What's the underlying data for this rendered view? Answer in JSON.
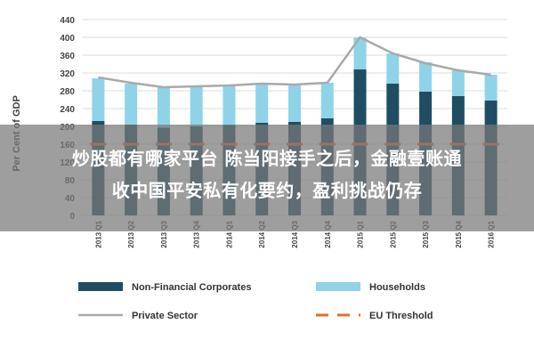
{
  "chart_data": {
    "type": "bar",
    "ylabel": "Per Cent of GDP",
    "ylim": [
      0,
      440
    ],
    "yticks": [
      0,
      40,
      80,
      120,
      160,
      200,
      240,
      280,
      320,
      360,
      400,
      440
    ],
    "categories": [
      "2013 Q1",
      "2013 Q2",
      "2013 Q3",
      "2013 Q4",
      "2014 Q1",
      "2014 Q2",
      "2014 Q3",
      "2014 Q4",
      "2015 Q1",
      "2015 Q2",
      "2015 Q3",
      "2015 Q4",
      "2016 Q1"
    ],
    "series": [
      {
        "name": "Non-Financial Corporates",
        "kind": "stacked-bar",
        "color": "#1f4e63",
        "values": [
          212,
          204,
          197,
          200,
          203,
          208,
          210,
          218,
          328,
          296,
          278,
          268,
          258
        ]
      },
      {
        "name": "Households",
        "kind": "stacked-bar",
        "color": "#8fd3e8",
        "values": [
          96,
          92,
          90,
          90,
          89,
          88,
          84,
          80,
          72,
          68,
          66,
          58,
          58
        ]
      },
      {
        "name": "Private Sector",
        "kind": "line",
        "color": "#a9a9a9",
        "values": [
          310,
          298,
          288,
          290,
          292,
          296,
          294,
          298,
          400,
          364,
          342,
          326,
          316
        ]
      },
      {
        "name": "EU Threshold",
        "kind": "dashed-line",
        "color": "#e8692a",
        "values": [
          160,
          160,
          160,
          160,
          160,
          160,
          160,
          160,
          160,
          160,
          160,
          160,
          160
        ]
      }
    ],
    "grid": true,
    "legend_position": "bottom"
  },
  "overlay": {
    "line1": "炒股都有哪家平台 陈当阳接手之后，金融壹账通",
    "line2": "收中国平安私有化要约，盈利挑战仍存"
  }
}
